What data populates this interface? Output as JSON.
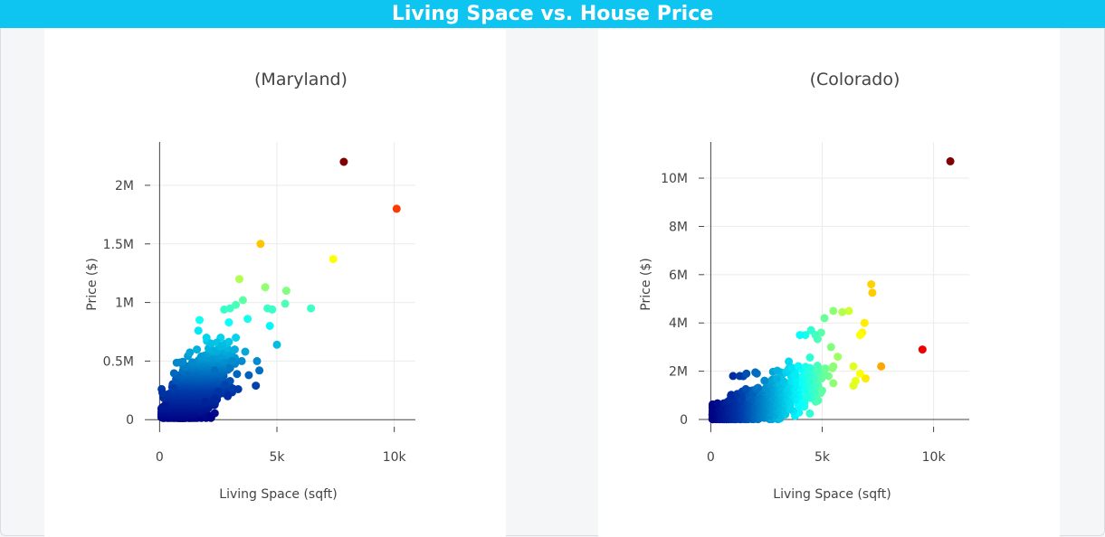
{
  "header": {
    "title": "Living Space vs. House Price"
  },
  "chart_data": [
    {
      "type": "scatter",
      "title": "(Maryland)",
      "xlabel": "Living Space (sqft)",
      "ylabel": "Price ($)",
      "xlim": [
        -400,
        10900
      ],
      "ylim": [
        -60000,
        2370000
      ],
      "xticks": [
        0,
        5000,
        10000
      ],
      "xtick_labels": [
        "0",
        "5k",
        "10k"
      ],
      "yticks": [
        0,
        500000,
        1000000,
        1500000,
        2000000
      ],
      "ytick_labels": [
        "0",
        "0.5M",
        "1M",
        "1.5M",
        "2M"
      ],
      "grid": true,
      "colorscale": "jet (color by price)",
      "cmax": 2200000,
      "points": [
        [
          7850,
          2200000
        ],
        [
          10100,
          1800000
        ],
        [
          7400,
          1370000
        ],
        [
          4300,
          1500000
        ],
        [
          6450,
          950000
        ],
        [
          5400,
          1100000
        ],
        [
          5350,
          990000
        ],
        [
          5000,
          640000
        ],
        [
          4600,
          950000
        ],
        [
          4800,
          940000
        ],
        [
          4500,
          1130000
        ],
        [
          4700,
          800000
        ],
        [
          3400,
          1200000
        ],
        [
          3550,
          1020000
        ],
        [
          3750,
          860000
        ],
        [
          3250,
          980000
        ],
        [
          3000,
          950000
        ],
        [
          2750,
          940000
        ],
        [
          2950,
          830000
        ],
        [
          3250,
          700000
        ],
        [
          2600,
          700000
        ],
        [
          2450,
          660000
        ],
        [
          2650,
          630000
        ],
        [
          1700,
          850000
        ],
        [
          1650,
          760000
        ],
        [
          2000,
          700000
        ],
        [
          2200,
          650000
        ],
        [
          3800,
          380000
        ],
        [
          4150,
          500000
        ],
        [
          4250,
          420000
        ],
        [
          4100,
          290000
        ],
        [
          3500,
          500000
        ],
        [
          3000,
          440000
        ],
        [
          3300,
          390000
        ],
        [
          3350,
          260000
        ],
        [
          2800,
          300000
        ],
        [
          2900,
          200000
        ],
        [
          2500,
          240000
        ],
        [
          2350,
          180000
        ],
        [
          2200,
          20000
        ],
        [
          1950,
          150000
        ],
        [
          3100,
          500000
        ],
        [
          3650,
          580000
        ],
        [
          2350,
          420000
        ],
        [
          120,
          230000
        ],
        [
          220,
          120000
        ],
        [
          150,
          110000
        ],
        [
          600,
          270000
        ]
      ],
      "clusters": [
        {
          "cx": 1500,
          "cy": 260000,
          "sx": 520,
          "sy": 115000,
          "n": 700
        },
        {
          "cx": 2150,
          "cy": 340000,
          "sx": 500,
          "sy": 120000,
          "n": 250
        },
        {
          "cx": 1050,
          "cy": 160000,
          "sx": 420,
          "sy": 75000,
          "n": 300
        }
      ]
    },
    {
      "type": "scatter",
      "title": "(Colorado)",
      "xlabel": "Living Space (sqft)",
      "ylabel": "Price ($)",
      "xlim": [
        -300,
        11600
      ],
      "ylim": [
        -300000,
        11500000
      ],
      "xticks": [
        0,
        5000,
        10000
      ],
      "xtick_labels": [
        "0",
        "5k",
        "10k"
      ],
      "yticks": [
        0,
        2000000,
        4000000,
        6000000,
        8000000,
        10000000
      ],
      "ytick_labels": [
        "0",
        "2M",
        "4M",
        "6M",
        "8M",
        "10M"
      ],
      "grid": true,
      "colorscale": "jet (color by living space)",
      "cmax": 10750,
      "points": [
        [
          10750,
          10700000
        ],
        [
          9500,
          2900000
        ],
        [
          7650,
          2200000
        ],
        [
          7200,
          5600000
        ],
        [
          7250,
          5250000
        ],
        [
          6900,
          4000000
        ],
        [
          6800,
          3600000
        ],
        [
          6700,
          3500000
        ],
        [
          6200,
          4500000
        ],
        [
          5900,
          4450000
        ],
        [
          5500,
          4500000
        ],
        [
          5100,
          4200000
        ],
        [
          6950,
          1700000
        ],
        [
          6700,
          1900000
        ],
        [
          6400,
          2200000
        ],
        [
          6500,
          1600000
        ],
        [
          6400,
          1400000
        ],
        [
          5700,
          2600000
        ],
        [
          5500,
          2200000
        ],
        [
          5400,
          3000000
        ],
        [
          4950,
          3600000
        ],
        [
          4700,
          3500000
        ],
        [
          4500,
          3700000
        ],
        [
          4250,
          3500000
        ],
        [
          4000,
          3500000
        ],
        [
          5500,
          1500000
        ],
        [
          5000,
          1200000
        ],
        [
          1000,
          1800000
        ],
        [
          1300,
          1800000
        ],
        [
          1600,
          1900000
        ],
        [
          2000,
          1950000
        ],
        [
          3500,
          2400000
        ]
      ],
      "clusters": [
        {
          "cx": 1800,
          "cy": 520000,
          "sx": 800,
          "sy": 280000,
          "n": 800
        },
        {
          "cx": 3300,
          "cy": 1050000,
          "sx": 780,
          "sy": 420000,
          "n": 380
        },
        {
          "cx": 900,
          "cy": 230000,
          "sx": 380,
          "sy": 110000,
          "n": 350
        }
      ]
    }
  ]
}
